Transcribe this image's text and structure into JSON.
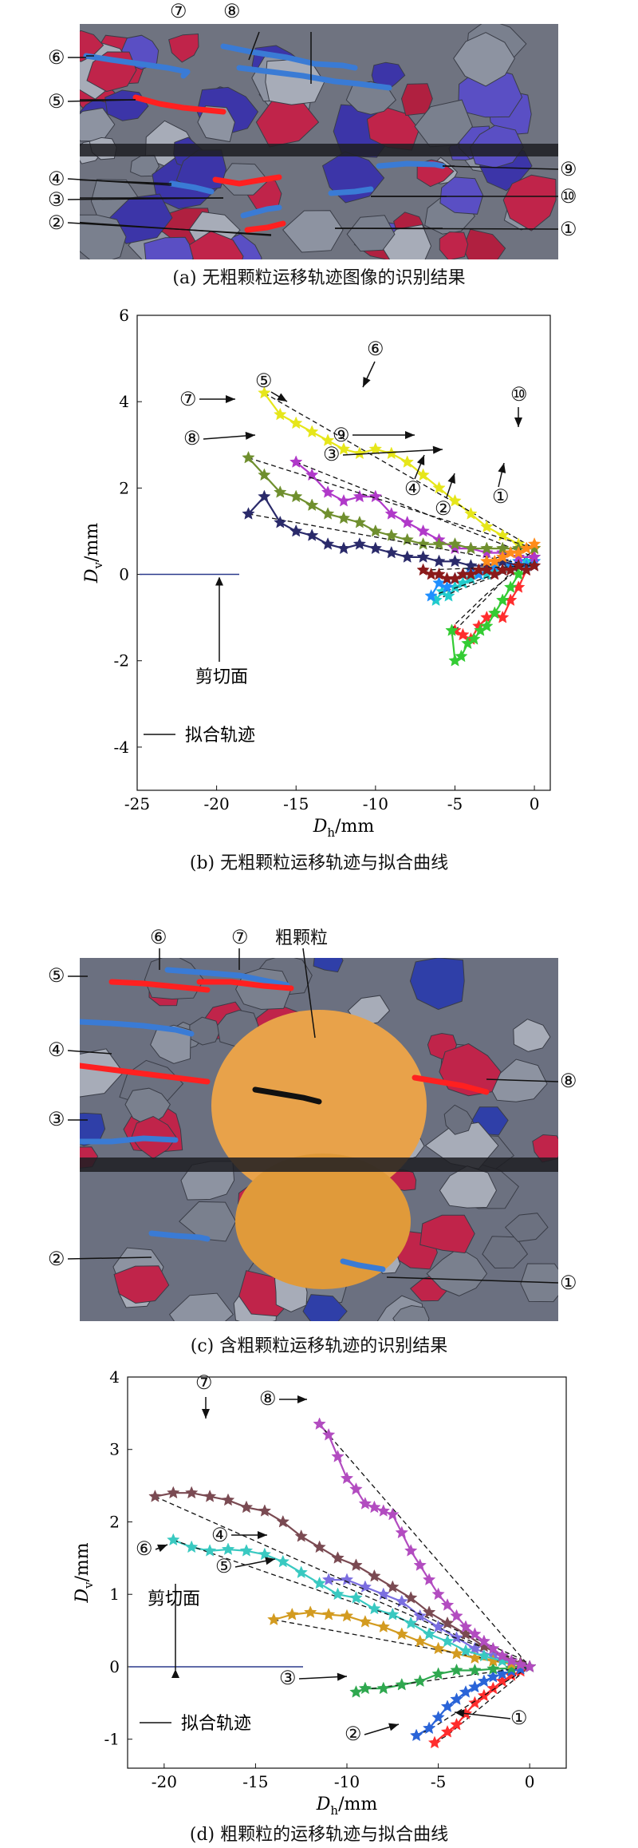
{
  "panel_a": {
    "caption": "(a) 无粗颗粒运移轨迹图像的识别结果",
    "labels": [
      "①",
      "②",
      "③",
      "④",
      "⑤",
      "⑥",
      "⑦",
      "⑧",
      "⑨",
      "⑩"
    ],
    "colors": {
      "red": "#ff2020",
      "blue": "#3a7bd5"
    }
  },
  "panel_c": {
    "caption": "(c) 含粗颗粒运移轨迹的识别结果",
    "labels": [
      "①",
      "②",
      "③",
      "④",
      "⑤",
      "⑥",
      "⑦",
      "⑧"
    ],
    "coarse_label": "粗颗粒"
  },
  "chart_data": [
    {
      "type": "line",
      "caption": "(b) 无粗颗粒运移轨迹与拟合曲线",
      "xlabel_main": "D",
      "xlabel_sub": "h",
      "xlabel_unit": "/mm",
      "ylabel_main": "D",
      "ylabel_sub": "v",
      "ylabel_unit": "/mm",
      "xlim": [
        -25,
        1
      ],
      "ylim": [
        -5,
        6
      ],
      "xticks": [
        -25,
        -20,
        -15,
        -10,
        -5,
        0
      ],
      "yticks": [
        -4,
        -2,
        0,
        2,
        4,
        6
      ],
      "shear_plane_label": "剪切面",
      "legend_label": "拟合轨迹",
      "series": [
        {
          "name": "①",
          "color": "#ff2d2d",
          "x": [
            -5,
            -4.5,
            -4,
            -3.5,
            -3,
            -2.5,
            -2,
            -1.5,
            -1,
            -0.5,
            0
          ],
          "y": [
            -1.3,
            -1.4,
            -1.5,
            -1.2,
            -1.0,
            -0.9,
            -1.0,
            -0.6,
            -0.3,
            0.1,
            0.6
          ]
        },
        {
          "name": "②",
          "color": "#33cc33",
          "x": [
            -5.2,
            -5,
            -4.6,
            -4.2,
            -3.8,
            -3.4,
            -3,
            -2.5,
            -2,
            -1.5,
            -1,
            -0.5,
            0
          ],
          "y": [
            -1.3,
            -2.0,
            -1.9,
            -1.6,
            -1.5,
            -1.3,
            -1.2,
            -0.9,
            -0.6,
            -0.3,
            0.0,
            0.2,
            0.4
          ]
        },
        {
          "name": "③",
          "color": "#22cccc",
          "x": [
            -6.2,
            -5.8,
            -5.4,
            -5,
            -4.5,
            -4,
            -3.5,
            -3,
            -2.5,
            -2,
            -1.5,
            -1,
            -0.5,
            0
          ],
          "y": [
            -0.6,
            -0.4,
            -0.5,
            -0.3,
            -0.2,
            -0.1,
            0.0,
            0.0,
            0.1,
            0.1,
            0.2,
            0.2,
            0.3,
            0.3
          ]
        },
        {
          "name": "④",
          "color": "#1f8fff",
          "x": [
            -6.5,
            -6,
            -5.5,
            -5,
            -4.5,
            -4,
            -3.5,
            -3,
            -2.5,
            -2,
            -1.5,
            -1,
            -0.5,
            0
          ],
          "y": [
            -0.5,
            -0.2,
            -0.3,
            -0.1,
            0.0,
            0.1,
            0.0,
            0.1,
            0.2,
            0.1,
            0.2,
            0.3,
            0.2,
            0.3
          ]
        },
        {
          "name": "⑤",
          "color": "#b039c9",
          "x": [
            -15,
            -14,
            -13,
            -12,
            -11,
            -10,
            -9,
            -8,
            -7,
            -6,
            -5,
            -4,
            -3,
            -2,
            -1,
            0
          ],
          "y": [
            2.6,
            2.3,
            1.9,
            1.7,
            1.8,
            1.8,
            1.4,
            1.2,
            1.0,
            0.8,
            0.6,
            0.6,
            0.5,
            0.5,
            0.4,
            0.4
          ]
        },
        {
          "name": "⑥",
          "color": "#e6e61a",
          "x": [
            -17,
            -16,
            -15,
            -14,
            -13,
            -12,
            -11,
            -10,
            -9,
            -8,
            -7,
            -6,
            -5,
            -4,
            -3,
            -2,
            -1,
            0
          ],
          "y": [
            4.2,
            3.7,
            3.5,
            3.3,
            3.1,
            2.9,
            2.8,
            2.9,
            2.8,
            2.6,
            2.3,
            2.0,
            1.7,
            1.4,
            1.1,
            0.9,
            0.7,
            0.6
          ]
        },
        {
          "name": "⑦",
          "color": "#6f8f2e",
          "x": [
            -18,
            -17,
            -16,
            -15,
            -14,
            -13,
            -12,
            -11,
            -10,
            -9,
            -8,
            -7,
            -6,
            -5,
            -4,
            -3,
            -2,
            -1,
            0
          ],
          "y": [
            2.7,
            2.3,
            1.9,
            1.8,
            1.6,
            1.4,
            1.3,
            1.2,
            1.0,
            0.9,
            0.8,
            0.7,
            0.7,
            0.7,
            0.6,
            0.6,
            0.6,
            0.6,
            0.6
          ]
        },
        {
          "name": "⑧",
          "color": "#2a2a6a",
          "x": [
            -18,
            -17,
            -16,
            -15,
            -14,
            -13,
            -12,
            -11,
            -10,
            -9,
            -8,
            -7,
            -6,
            -5,
            -4,
            -3,
            -2,
            -1,
            0
          ],
          "y": [
            1.4,
            1.8,
            1.2,
            1.0,
            0.9,
            0.7,
            0.6,
            0.7,
            0.6,
            0.5,
            0.4,
            0.4,
            0.3,
            0.3,
            0.2,
            0.2,
            0.3,
            0.2,
            0.2
          ]
        },
        {
          "name": "⑨",
          "color": "#8b1a1a",
          "x": [
            -7,
            -6.5,
            -6,
            -5.5,
            -5,
            -4.5,
            -4,
            -3.5,
            -3,
            -2.5,
            -2,
            -1.5,
            -1,
            -0.5,
            0
          ],
          "y": [
            0.1,
            0.0,
            0.0,
            -0.1,
            -0.1,
            0.0,
            0.0,
            0.1,
            0.1,
            0.0,
            0.1,
            0.1,
            0.2,
            0.1,
            0.2
          ]
        },
        {
          "name": "⑩",
          "color": "#ff8c1a",
          "x": [
            -3,
            -2.5,
            -2,
            -1.5,
            -1,
            -0.5,
            0
          ],
          "y": [
            0.3,
            0.3,
            0.4,
            0.5,
            0.5,
            0.6,
            0.7
          ]
        }
      ]
    },
    {
      "type": "line",
      "caption": "(d) 粗颗粒的运移轨迹与拟合曲线",
      "xlabel_main": "D",
      "xlabel_sub": "h",
      "xlabel_unit": "/mm",
      "ylabel_main": "D",
      "ylabel_sub": "v",
      "ylabel_unit": "/mm",
      "xlim": [
        -22,
        2
      ],
      "ylim": [
        -1.4,
        4
      ],
      "xticks": [
        -20,
        -15,
        -10,
        -5,
        0
      ],
      "yticks": [
        -1,
        0,
        1,
        2,
        3,
        4
      ],
      "shear_plane_label": "剪切面",
      "legend_label": "拟合轨迹",
      "series": [
        {
          "name": "①",
          "color": "#ff2d2d",
          "x": [
            -5.2,
            -4.5,
            -4,
            -3.5,
            -3,
            -2.5,
            -2,
            -1.5,
            -1,
            -0.5,
            0
          ],
          "y": [
            -1.05,
            -0.9,
            -0.8,
            -0.65,
            -0.5,
            -0.4,
            -0.3,
            -0.2,
            -0.12,
            -0.06,
            0
          ]
        },
        {
          "name": "②",
          "color": "#2a64d8",
          "x": [
            -6.2,
            -5.5,
            -5,
            -4.5,
            -4,
            -3.5,
            -3,
            -2.5,
            -2,
            -1.5,
            -1,
            -0.5,
            0
          ],
          "y": [
            -0.95,
            -0.85,
            -0.7,
            -0.55,
            -0.45,
            -0.35,
            -0.28,
            -0.2,
            -0.14,
            -0.1,
            -0.06,
            -0.03,
            0
          ]
        },
        {
          "name": "③",
          "color": "#2fa84f",
          "x": [
            -9.5,
            -9,
            -8,
            -7,
            -6,
            -5,
            -4,
            -3,
            -2,
            -1,
            0
          ],
          "y": [
            -0.35,
            -0.3,
            -0.3,
            -0.25,
            -0.2,
            -0.1,
            -0.05,
            -0.05,
            -0.03,
            -0.02,
            0
          ]
        },
        {
          "name": "④",
          "color": "#7b6ee0",
          "x": [
            -11,
            -10,
            -9,
            -8,
            -7,
            -6,
            -5,
            -4,
            -3,
            -2,
            -1,
            0
          ],
          "y": [
            1.2,
            1.2,
            1.1,
            1.0,
            0.9,
            0.7,
            0.55,
            0.4,
            0.25,
            0.15,
            0.05,
            0
          ]
        },
        {
          "name": "⑤",
          "color": "#d39b20",
          "x": [
            -14,
            -13,
            -12,
            -11,
            -10,
            -9,
            -8,
            -7,
            -6,
            -5,
            -4,
            -3,
            -2,
            -1,
            0
          ],
          "y": [
            0.65,
            0.72,
            0.75,
            0.72,
            0.7,
            0.62,
            0.55,
            0.45,
            0.35,
            0.25,
            0.18,
            0.12,
            0.08,
            0.04,
            0
          ]
        },
        {
          "name": "⑥",
          "color": "#39c9c1",
          "x": [
            -19.5,
            -18.5,
            -17.5,
            -16.5,
            -15.5,
            -14.5,
            -13.5,
            -12.5,
            -11.5,
            -10.5,
            -9.5,
            -8.5,
            -7.5,
            -6.5,
            -5.5,
            -4.5,
            -3.5,
            -2.5,
            -1.5,
            -0.5,
            0
          ],
          "y": [
            1.75,
            1.65,
            1.6,
            1.62,
            1.6,
            1.55,
            1.45,
            1.3,
            1.15,
            1.0,
            0.95,
            0.8,
            0.72,
            0.6,
            0.45,
            0.35,
            0.22,
            0.15,
            0.08,
            0.03,
            0
          ]
        },
        {
          "name": "⑦",
          "color": "#7a4a52",
          "x": [
            -20.5,
            -19.5,
            -18.5,
            -17.5,
            -16.5,
            -15.5,
            -14.5,
            -13.5,
            -12.5,
            -11.5,
            -10.5,
            -9.5,
            -8.5,
            -7.5,
            -6.5,
            -5.5,
            -4.5,
            -3.5,
            -2.5,
            -1.5,
            -0.5,
            0
          ],
          "y": [
            2.35,
            2.4,
            2.4,
            2.35,
            2.3,
            2.2,
            2.15,
            2.0,
            1.8,
            1.65,
            1.5,
            1.4,
            1.25,
            1.1,
            0.95,
            0.75,
            0.6,
            0.45,
            0.28,
            0.15,
            0.05,
            0
          ]
        },
        {
          "name": "⑧",
          "color": "#b24cc0",
          "x": [
            -11.5,
            -11,
            -10.5,
            -10,
            -9.5,
            -9,
            -8.5,
            -8,
            -7.5,
            -7,
            -6.5,
            -6,
            -5.5,
            -5,
            -4.5,
            -4,
            -3.5,
            -3,
            -2.5,
            -2,
            -1.5,
            -1,
            -0.5,
            0
          ],
          "y": [
            3.35,
            3.2,
            2.9,
            2.6,
            2.45,
            2.25,
            2.2,
            2.15,
            2.1,
            1.85,
            1.6,
            1.4,
            1.2,
            1.0,
            0.85,
            0.7,
            0.55,
            0.45,
            0.35,
            0.25,
            0.15,
            0.08,
            0.03,
            0
          ]
        }
      ]
    }
  ]
}
